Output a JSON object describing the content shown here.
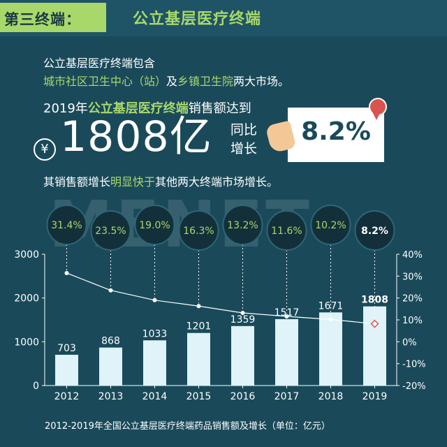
{
  "header": {
    "tag": "第三终端：",
    "title": "公立基层医疗终端"
  },
  "intro": {
    "line1": "公立基层医疗终端包含",
    "line2_part1": "城市社区卫生中心（站）",
    "line2_part2": "及",
    "line2_part3": "乡镇卫生院",
    "line2_part4": "两大市场。"
  },
  "headline": {
    "prefix": "2019年",
    "highlight": "公立基层医疗终端",
    "suffix": "销售额达到"
  },
  "big_value": "1808亿",
  "yen_symbol": "¥",
  "growth_label_1": "同比",
  "growth_label_2": "增长",
  "growth_value": "8.2%",
  "summary": {
    "part1": "其销售额增长",
    "highlight": "明显快于",
    "part2": "其他两大终端市场增长。"
  },
  "watermark": "MENET",
  "footer": "2012-2019年全国公立基层医疗终端药品销售额及增长（单位：亿元）",
  "colors": {
    "background": "#1a4a5a",
    "accent": "#a8d86a",
    "bar": "#dff3f8",
    "bubble": "#13303a"
  },
  "chart_data": {
    "type": "bar",
    "categories": [
      "2012",
      "2013",
      "2014",
      "2015",
      "2016",
      "2017",
      "2018",
      "2019"
    ],
    "series": [
      {
        "values": [
          703,
          868,
          1033,
          1201,
          1359,
          1517,
          1671,
          1808
        ]
      },
      {
        "values": [
          31.4,
          23.5,
          19.0,
          16.3,
          13.2,
          11.6,
          10.2,
          8.2
        ]
      }
    ],
    "bar_labels": [
      "703",
      "868",
      "1033",
      "1201",
      "1359",
      "1517",
      "1671",
      "1808"
    ],
    "growth_labels": [
      "31.4%",
      "23.5%",
      "19.0%",
      "16.3%",
      "13.2%",
      "11.6%",
      "10.2%",
      "8.2%"
    ],
    "ylim": [
      0,
      3000
    ],
    "yticks": [
      "0",
      "1000",
      "2000",
      "3000"
    ],
    "y2lim": [
      -20,
      40
    ],
    "y2ticks": [
      "-20%",
      "-10%",
      "0%",
      "10%",
      "20%",
      "30%",
      "40%"
    ],
    "xlabel": "",
    "ylabel": "",
    "title": ""
  }
}
